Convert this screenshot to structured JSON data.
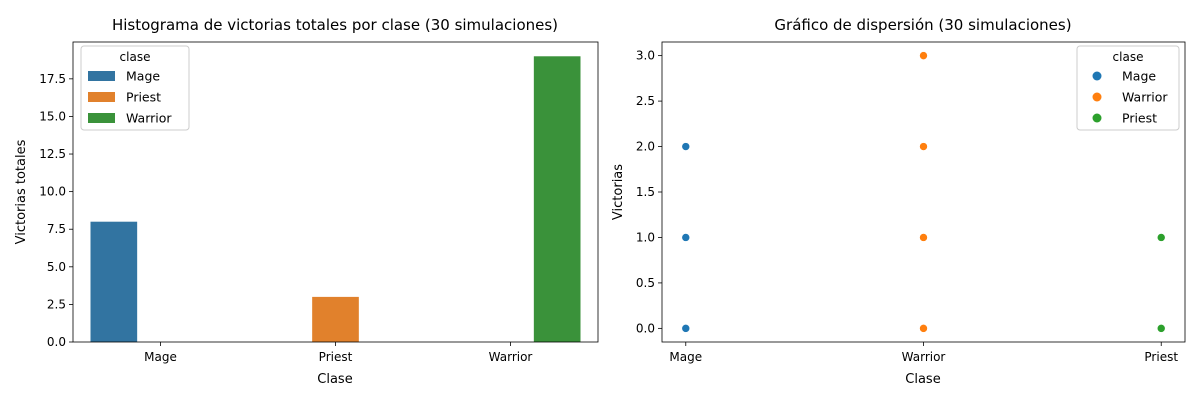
{
  "chart_data": [
    {
      "type": "bar",
      "title": "Histograma de victorias totales por clase (30 simulaciones)",
      "xlabel": "Clase",
      "ylabel": "Victorias totales",
      "categories": [
        "Mage",
        "Priest",
        "Warrior"
      ],
      "series": [
        {
          "name": "Mage",
          "color": "#3274a1",
          "values": [
            8,
            0,
            0
          ]
        },
        {
          "name": "Priest",
          "color": "#e1812c",
          "values": [
            0,
            3,
            0
          ]
        },
        {
          "name": "Warrior",
          "color": "#3a923a",
          "values": [
            0,
            0,
            19
          ]
        }
      ],
      "ylim": [
        0,
        19.95
      ],
      "yticks": [
        0.0,
        2.5,
        5.0,
        7.5,
        10.0,
        12.5,
        15.0,
        17.5
      ],
      "ytick_labels": [
        "0.0",
        "2.5",
        "5.0",
        "7.5",
        "10.0",
        "12.5",
        "15.0",
        "17.5"
      ],
      "legend": {
        "title": "clase",
        "position": "top-left"
      },
      "grid": false
    },
    {
      "type": "scatter",
      "title": "Gráfico de dispersión (30 simulaciones)",
      "xlabel": "Clase",
      "ylabel": "Victorias",
      "categories": [
        "Mage",
        "Warrior",
        "Priest"
      ],
      "series": [
        {
          "name": "Mage",
          "color": "#1f77b4",
          "points": [
            {
              "x": "Mage",
              "y": 2
            },
            {
              "x": "Mage",
              "y": 1
            },
            {
              "x": "Mage",
              "y": 0
            }
          ]
        },
        {
          "name": "Warrior",
          "color": "#ff7f0e",
          "points": [
            {
              "x": "Warrior",
              "y": 3
            },
            {
              "x": "Warrior",
              "y": 2
            },
            {
              "x": "Warrior",
              "y": 1
            },
            {
              "x": "Warrior",
              "y": 0
            }
          ]
        },
        {
          "name": "Priest",
          "color": "#2ca02c",
          "points": [
            {
              "x": "Priest",
              "y": 1
            },
            {
              "x": "Priest",
              "y": 0
            }
          ]
        }
      ],
      "ylim": [
        -0.15,
        3.15
      ],
      "yticks": [
        0.0,
        0.5,
        1.0,
        1.5,
        2.0,
        2.5,
        3.0
      ],
      "ytick_labels": [
        "0.0",
        "0.5",
        "1.0",
        "1.5",
        "2.0",
        "2.5",
        "3.0"
      ],
      "legend": {
        "title": "clase",
        "position": "top-right"
      },
      "grid": false
    }
  ]
}
